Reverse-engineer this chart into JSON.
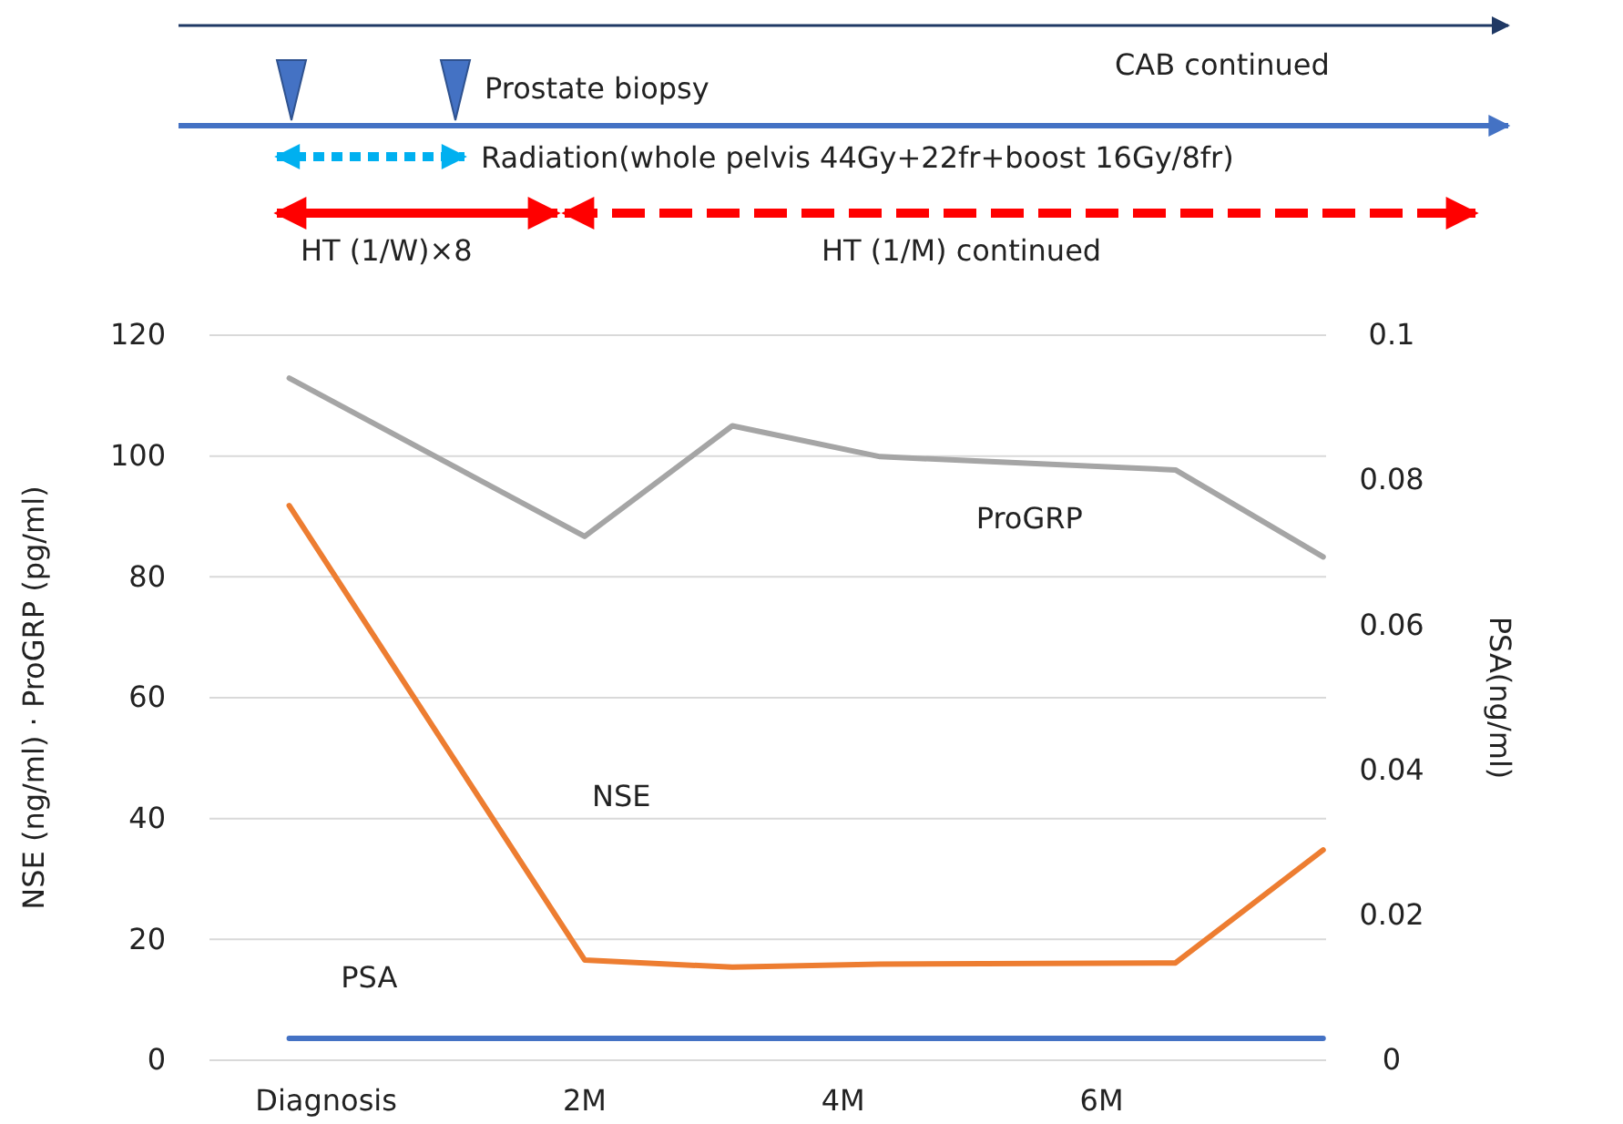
{
  "chart_data": {
    "type": "line",
    "ylabel": "NSE (ng/ml) · ProGRP (pg/ml)",
    "y2label": "PSA(ng/ml)",
    "x": [
      0,
      2,
      3,
      4,
      6,
      7
    ],
    "xlim": [
      -0.54,
      7.02
    ],
    "xticks": [
      {
        "value": 0.25,
        "label": "Diagnosis"
      },
      {
        "value": 2,
        "label": "2M"
      },
      {
        "value": 3.75,
        "label": "4M"
      },
      {
        "value": 5.5,
        "label": "6M"
      }
    ],
    "ylim": [
      0,
      120
    ],
    "yticks": [
      0,
      20,
      40,
      60,
      80,
      100,
      120
    ],
    "y2lim": [
      0,
      0.1
    ],
    "y2ticks": [
      0,
      0.02,
      0.04,
      0.06,
      0.08,
      0.1
    ],
    "grid": "y",
    "line_style": "solid",
    "marker": "none",
    "series": [
      {
        "name": "ProGRP",
        "color": "#a5a5a5",
        "values": [
          112.9,
          86.7,
          105,
          99.9,
          97.7,
          83.3
        ]
      },
      {
        "name": "NSE",
        "color": "#ed7d31",
        "values": [
          91.8,
          16.6,
          15.4,
          15.9,
          16.1,
          34.8
        ]
      },
      {
        "name": "PSA",
        "color": "#4472c4",
        "axis": "y2",
        "values": [
          0.003,
          0.003,
          0.003,
          0.003,
          0.003,
          0.003
        ]
      }
    ],
    "annotations": [
      "Prostate biopsy",
      "CAB continued",
      "Radiation(whole pelvis 44Gy+22fr+boost 16Gy/8fr)",
      "HT (1/W)×8",
      "HT (1/M) continued"
    ]
  }
}
